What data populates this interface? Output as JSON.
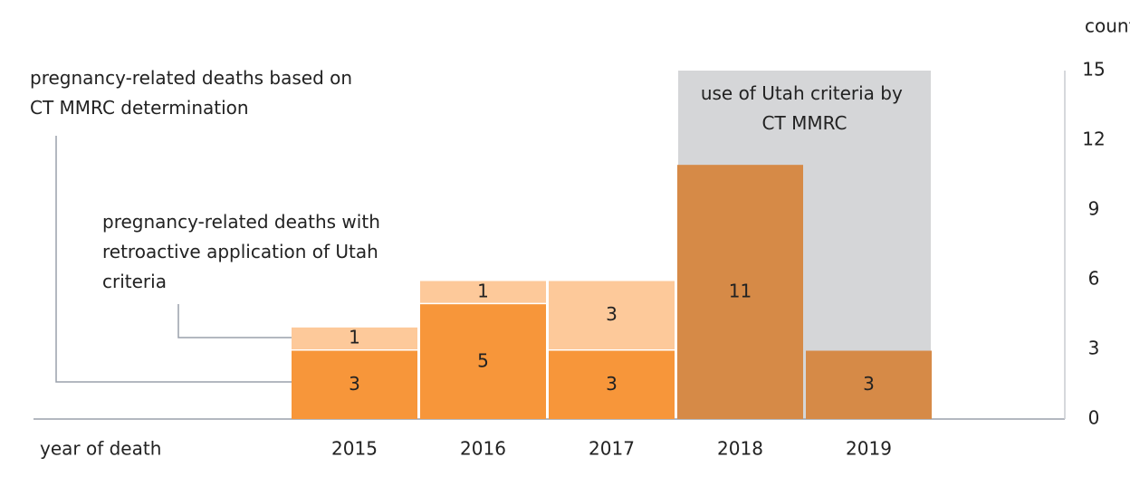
{
  "chart_data": {
    "type": "bar",
    "stacked": true,
    "categories": [
      "2015",
      "2016",
      "2017",
      "2018",
      "2019"
    ],
    "series": [
      {
        "name": "pregnancy-related deaths based on CT MMRC determination",
        "color": "#f7963a",
        "label_color": "#c8651b",
        "colors": [
          "#f7963a",
          "#f7963a",
          "#f7963a",
          "#d68a47",
          "#d68a47"
        ],
        "values": [
          3,
          5,
          3,
          11,
          3
        ]
      },
      {
        "name": "pregnancy-related deaths with retroactive application of Utah criteria",
        "color": "#fdc99a",
        "label_color": "#fbb577",
        "values": [
          1,
          1,
          3,
          null,
          null
        ]
      }
    ],
    "ylim": [
      0,
      15
    ],
    "yticks": [
      0,
      3,
      6,
      9,
      12,
      15
    ],
    "xlabel": "year of death",
    "ylabel": "count",
    "annotation": {
      "text": "use of Utah criteria by CT MMRC",
      "from": "2018",
      "to": "2019",
      "color": "#d5d6d8"
    }
  }
}
